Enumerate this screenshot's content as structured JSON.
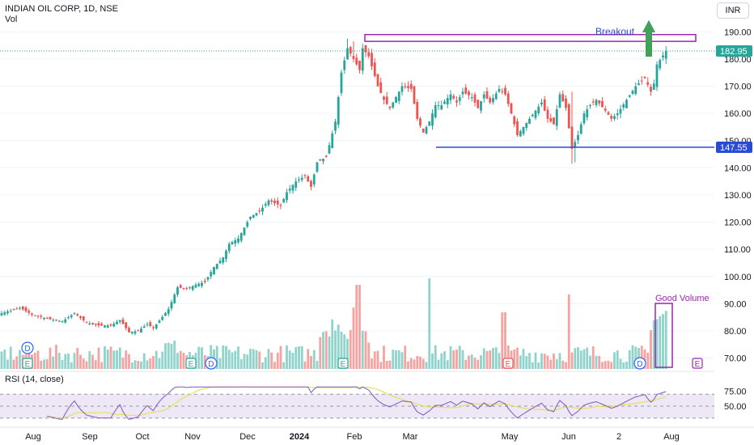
{
  "header": {
    "title": "INDIAN OIL CORP, 1D, NSE",
    "vol_label": "Vol",
    "currency": "INR",
    "rsi_label": "RSI (14, close)"
  },
  "annotations": {
    "breakout": "Breakout",
    "good_volume": "Good Volume"
  },
  "colors": {
    "up": "#26a69a",
    "down": "#ef5350",
    "vol_up": "#8fd3cb",
    "vol_down": "#f5a3a1",
    "support": "#2a4bd7",
    "box": "#9c27b0",
    "arrow": "#43a05a",
    "rsi_line": "#7e57c2",
    "rsi_ma": "#e6e15c",
    "rsi_band": "#ede7f6",
    "price_tag": "#26a69a"
  },
  "chart_data": {
    "type": "candlestick",
    "title": "INDIAN OIL CORP, 1D, NSE",
    "currency": "INR",
    "price_axis": {
      "ylim": [
        66,
        194
      ],
      "ticks": [
        70,
        80,
        90,
        100,
        110,
        120,
        130,
        140,
        150,
        160,
        170,
        180,
        190
      ]
    },
    "time_axis": {
      "labels": [
        "Aug",
        "Sep",
        "Oct",
        "Nov",
        "Dec",
        "2024",
        "Feb",
        "Mar",
        "May",
        "Jun",
        "2",
        "Aug"
      ]
    },
    "current_price": 182.95,
    "support_level": 147.55,
    "resistance_zone": [
      186.5,
      189
    ],
    "price_path": [
      [
        0,
        86.5
      ],
      [
        6,
        88.5
      ],
      [
        10,
        86
      ],
      [
        15,
        84.5
      ],
      [
        20,
        83.5
      ],
      [
        24,
        86.5
      ],
      [
        28,
        83
      ],
      [
        32,
        82
      ],
      [
        36,
        82
      ],
      [
        39,
        84
      ],
      [
        42,
        79.5
      ],
      [
        45,
        80
      ],
      [
        48,
        82.5
      ],
      [
        50,
        81
      ],
      [
        55,
        88
      ],
      [
        58,
        96
      ],
      [
        61,
        95.5
      ],
      [
        64,
        97
      ],
      [
        67,
        98
      ],
      [
        70,
        103.5
      ],
      [
        73,
        107
      ],
      [
        75,
        112
      ],
      [
        78,
        114
      ],
      [
        82,
        122
      ],
      [
        85,
        124
      ],
      [
        88,
        128
      ],
      [
        92,
        126
      ],
      [
        94,
        131
      ],
      [
        97,
        135
      ],
      [
        100,
        137
      ],
      [
        102,
        133
      ],
      [
        104,
        142
      ],
      [
        107,
        144
      ],
      [
        110,
        157
      ],
      [
        112,
        175
      ],
      [
        114,
        184
      ],
      [
        116,
        180
      ],
      [
        118,
        176
      ],
      [
        119,
        184
      ],
      [
        121,
        181
      ],
      [
        124,
        170
      ],
      [
        126,
        165
      ],
      [
        128,
        162
      ],
      [
        130,
        166
      ],
      [
        132,
        170
      ],
      [
        135,
        169
      ],
      [
        137,
        158
      ],
      [
        139,
        153
      ],
      [
        141,
        157
      ],
      [
        143,
        163
      ],
      [
        145,
        163
      ],
      [
        148,
        167
      ],
      [
        150,
        164
      ],
      [
        152,
        168
      ],
      [
        155,
        166
      ],
      [
        157,
        162
      ],
      [
        159,
        167
      ],
      [
        161,
        164
      ],
      [
        164,
        169
      ],
      [
        166,
        167
      ],
      [
        168,
        160
      ],
      [
        170,
        152
      ],
      [
        172,
        155
      ],
      [
        174,
        158
      ],
      [
        176,
        161
      ],
      [
        178,
        164
      ],
      [
        180,
        158
      ],
      [
        182,
        156
      ],
      [
        184,
        167
      ],
      [
        186,
        162
      ],
      [
        188,
        147
      ],
      [
        190,
        152
      ],
      [
        192,
        160
      ],
      [
        194,
        163
      ],
      [
        196,
        165
      ],
      [
        199,
        161
      ],
      [
        201,
        158
      ],
      [
        203,
        160
      ],
      [
        206,
        165
      ],
      [
        209,
        170
      ],
      [
        212,
        173
      ],
      [
        214,
        168
      ],
      [
        215,
        171
      ],
      [
        216,
        178
      ],
      [
        219,
        182.95
      ]
    ],
    "rsi": {
      "ylim": [
        26,
        84
      ],
      "ticks": [
        50,
        75
      ],
      "upper": 70,
      "middle": 50,
      "lower": 30
    }
  }
}
